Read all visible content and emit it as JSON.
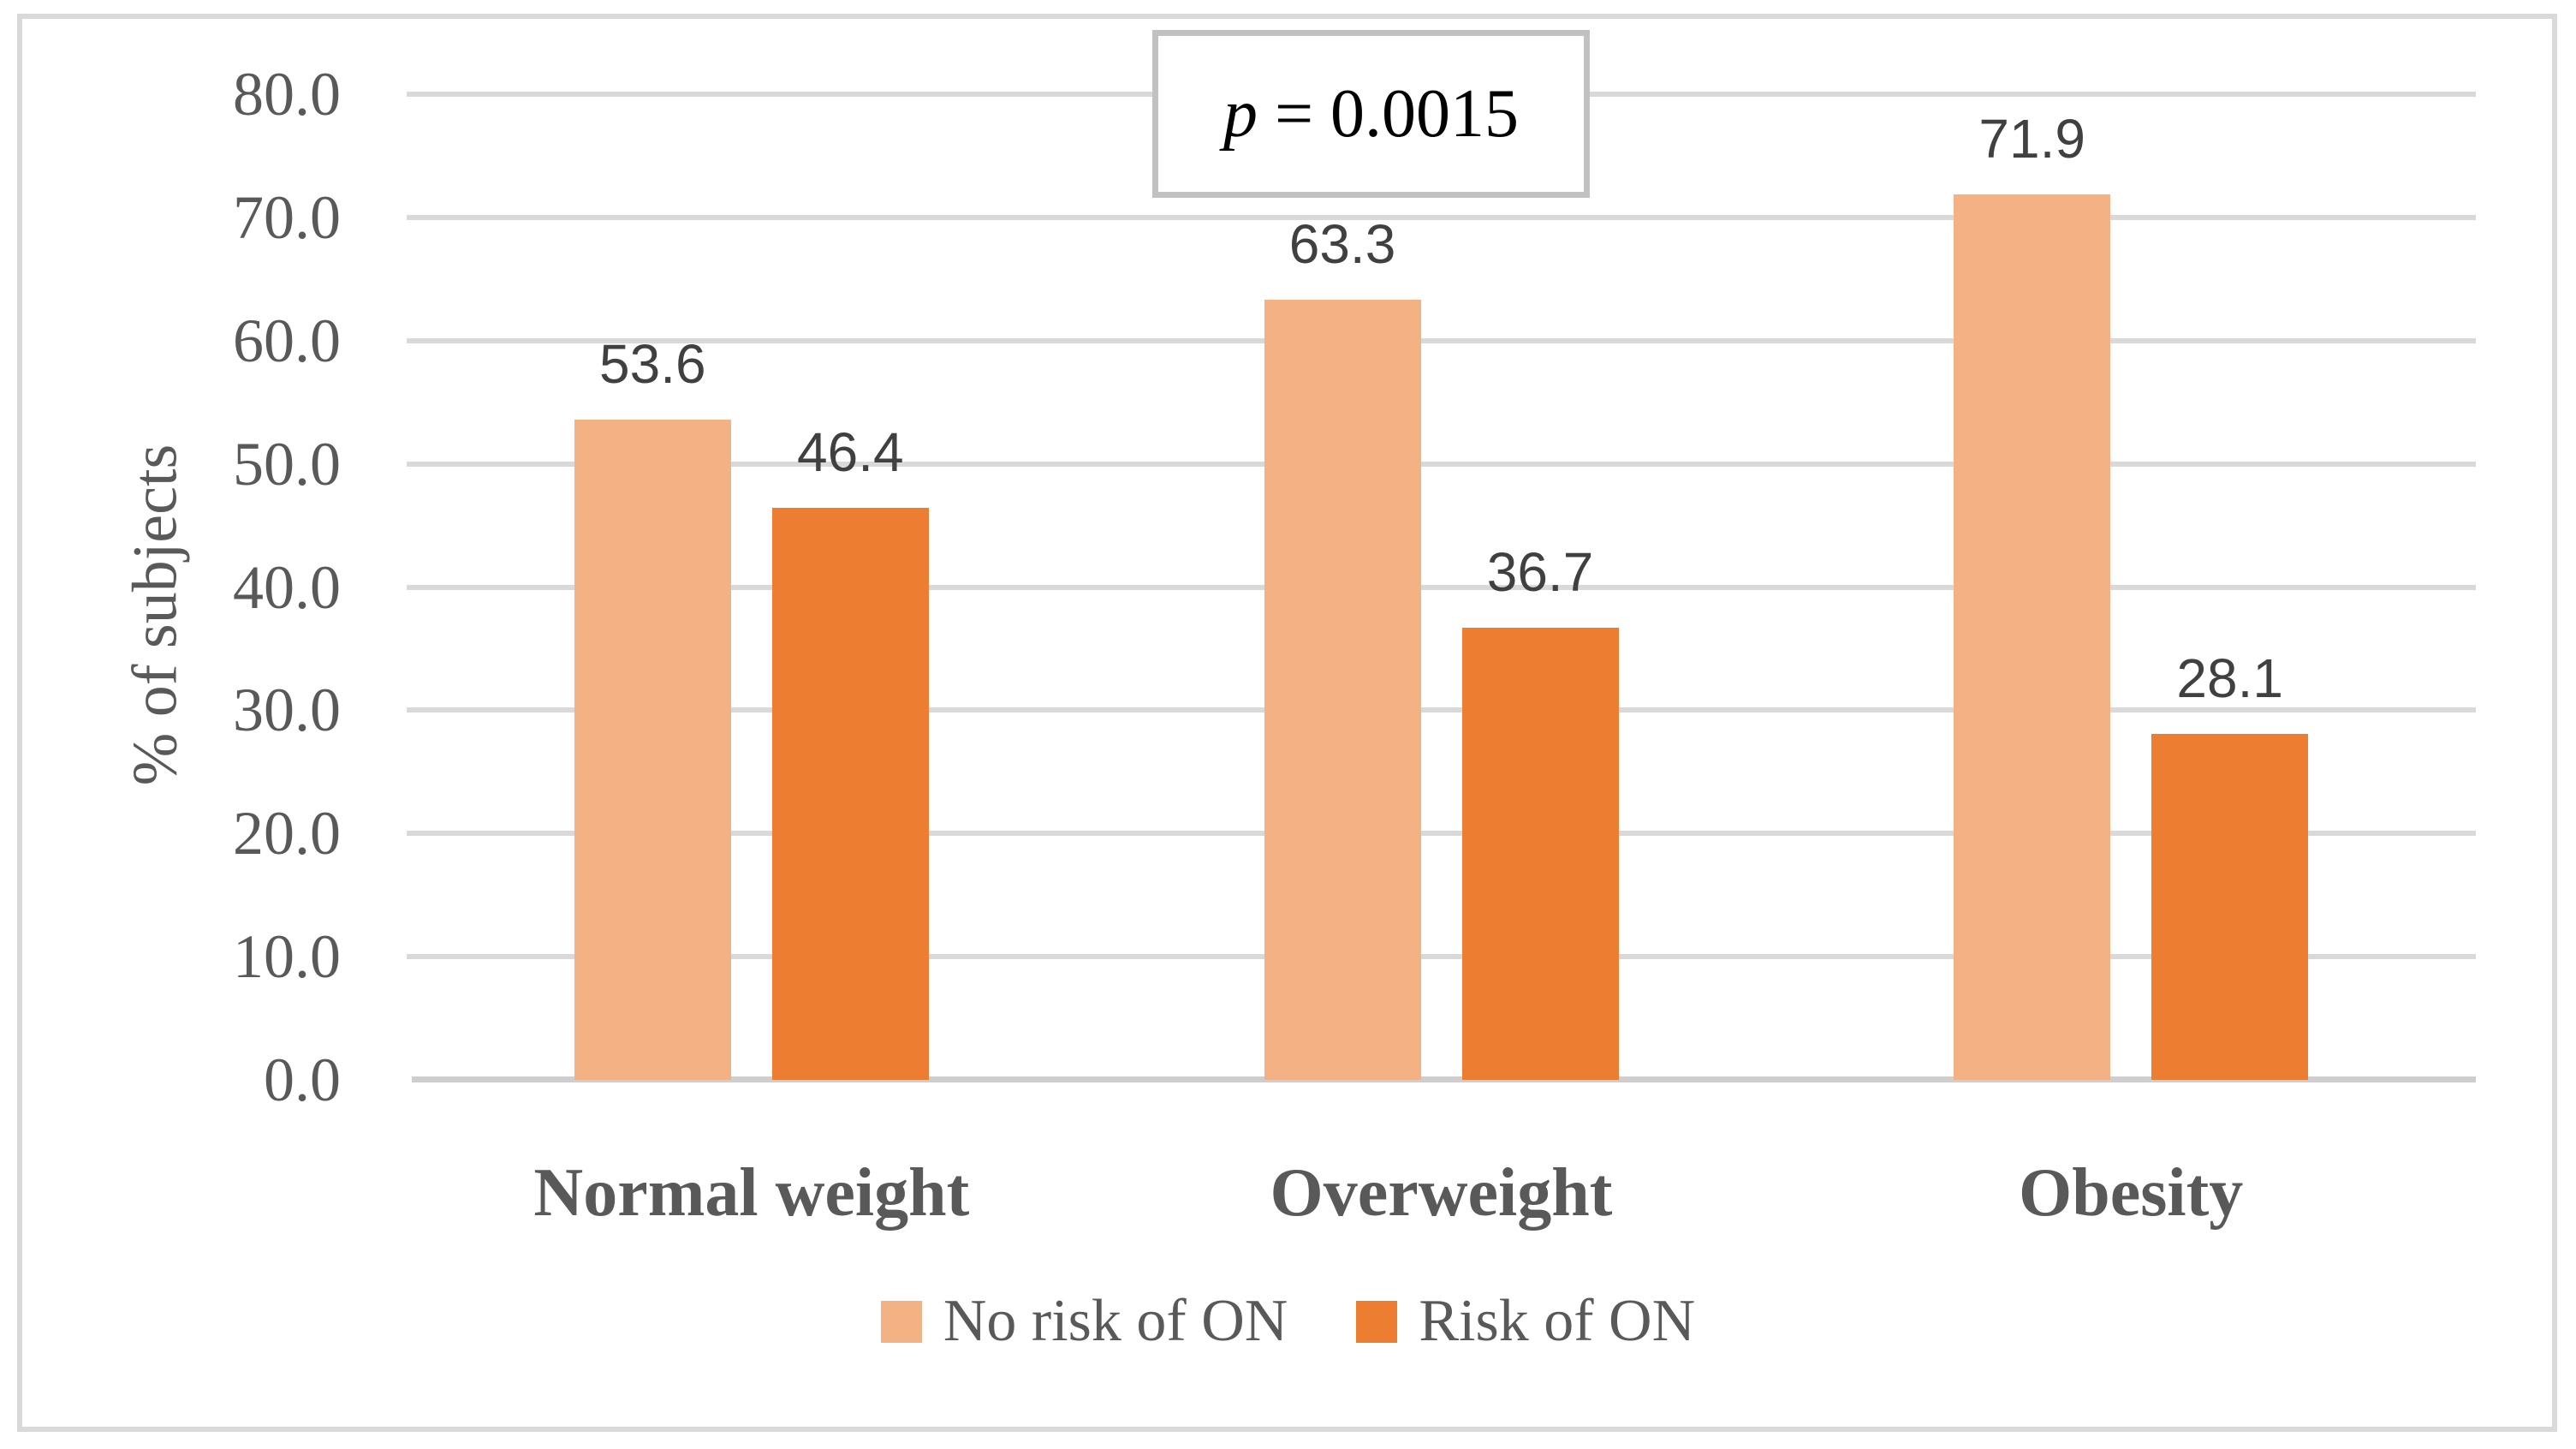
{
  "figure": {
    "background_color": "#ffffff",
    "border_color": "#d9d9d9",
    "gridline_color": "#d9d9d9",
    "axis_line_color": "#cfcdcd",
    "text_color": "#595959",
    "data_label_color": "#404040"
  },
  "chart_data": {
    "type": "bar",
    "title": "",
    "xlabel": "",
    "ylabel": "% of subjects",
    "categories": [
      "Normal weight",
      "Overweight",
      "Obesity"
    ],
    "series": [
      {
        "name": "No risk of ON",
        "color": "#f4b183",
        "values": [
          53.6,
          63.3,
          71.9
        ]
      },
      {
        "name": "Risk of ON",
        "color": "#ed7d31",
        "values": [
          46.4,
          36.7,
          28.1
        ]
      }
    ],
    "ylim": [
      0,
      80
    ],
    "ytick_labels": [
      "0.0",
      "10.0",
      "20.0",
      "30.0",
      "40.0",
      "50.0",
      "60.0",
      "70.0",
      "80.0"
    ],
    "grid": "horizontal",
    "legend_position": "bottom",
    "annotation": {
      "symbol": "p",
      "rest": " = 0.0015"
    }
  }
}
